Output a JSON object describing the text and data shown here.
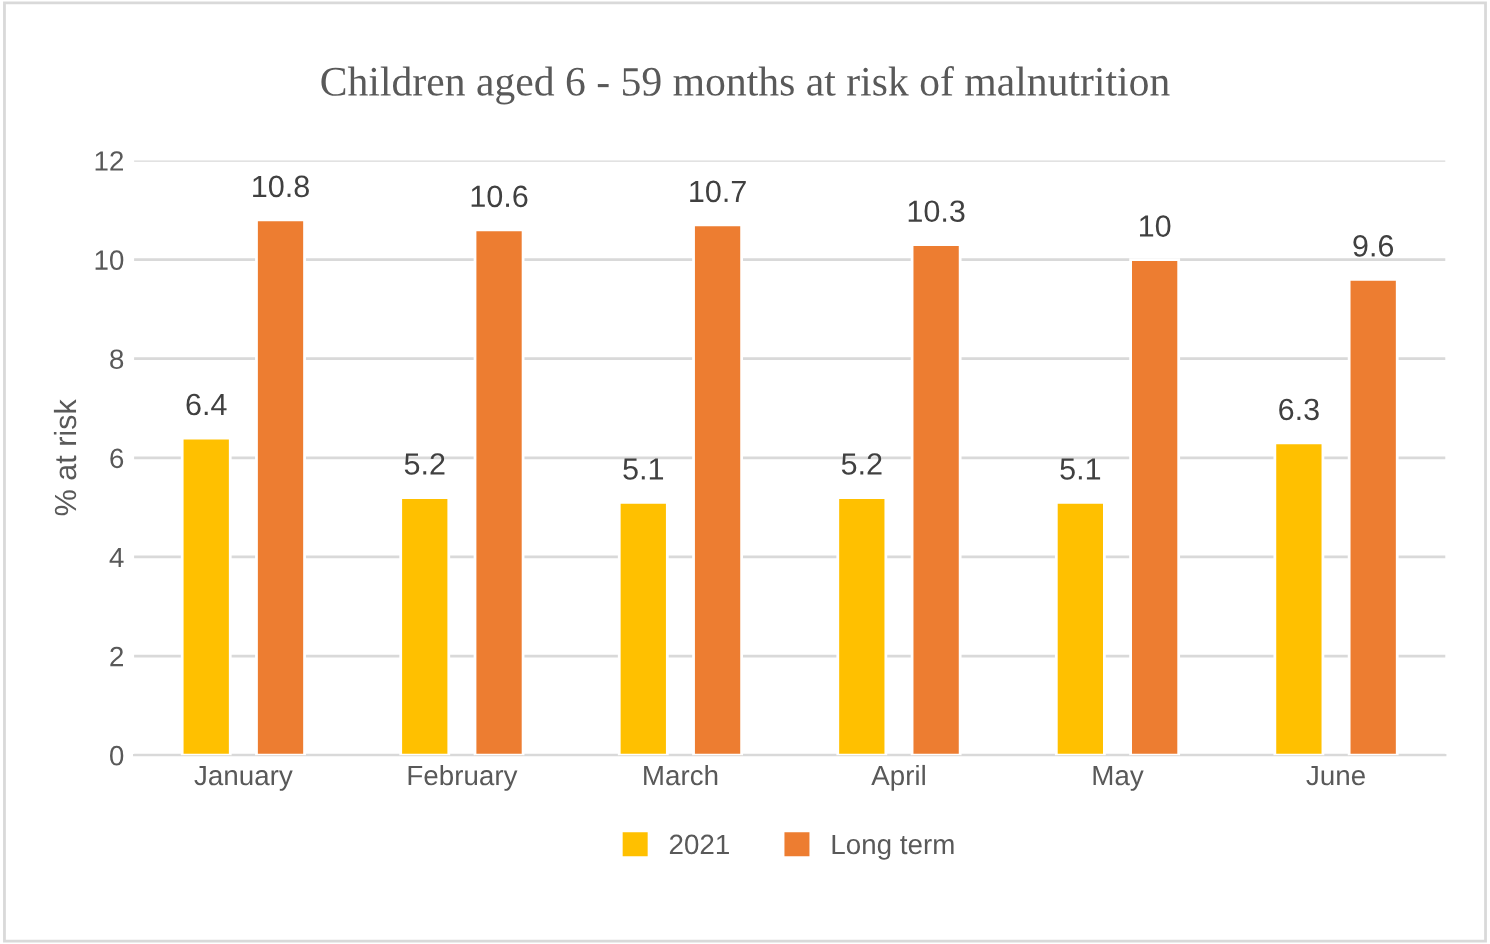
{
  "chart_data": {
    "type": "bar",
    "title": "Children aged 6 - 59 months at risk of malnutrition",
    "ylabel": "% at risk",
    "categories": [
      "January",
      "February",
      "March",
      "April",
      "May",
      "June"
    ],
    "series": [
      {
        "name": "2021",
        "color": "#ffc000",
        "values": [
          6.4,
          5.2,
          5.1,
          5.2,
          5.1,
          6.3
        ]
      },
      {
        "name": "Long term",
        "color": "#ed7d31",
        "values": [
          10.8,
          10.6,
          10.7,
          10.3,
          10,
          9.6
        ]
      }
    ],
    "ylim": [
      0,
      12
    ],
    "yticks": [
      0,
      2,
      4,
      6,
      8,
      10,
      12
    ],
    "grid": "y",
    "legend": "bottom",
    "data_labels": true
  }
}
